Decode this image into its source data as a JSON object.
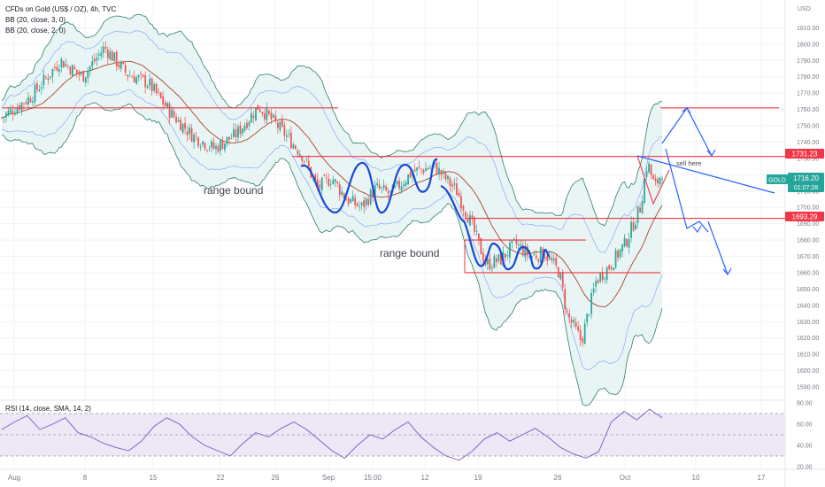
{
  "header": {
    "title": "CFDs on Gold (US$ / OZ), 4h, TVC",
    "indicators": [
      "BB (20, close, 3, 0)",
      "BB (20, close, 2, 0)"
    ]
  },
  "currency": "USD",
  "rsi_legend": "RSI (14, close, SMA, 14, 2)",
  "price_badges": {
    "symbol": "GOLD",
    "last_price": "1716.20",
    "countdown": "01:07:28",
    "upper_level": "1731.23",
    "lower_level": "1693.29"
  },
  "annotations": {
    "range_bound_1": "range bound",
    "range_bound_2": "range bound",
    "sell_here": "sell here"
  },
  "colors": {
    "candle_up": "#26a69a",
    "candle_down": "#ef5350",
    "bb_outer": "#2e7d6e",
    "bb_inner": "#2962ff",
    "basis": "#a8452a",
    "band_fill": "#e3f2f1",
    "levels": "#f23645",
    "drawing": "#1848d8",
    "forecast": "#2962ff",
    "rsi_line": "#7e57c2",
    "rsi_band": "#ede7f6"
  },
  "chart_data": {
    "type": "candlestick",
    "title": "CFDs on Gold (US$ / OZ), 4h, TVC",
    "ylabel": "USD",
    "ylim": [
      1590,
      1820
    ],
    "y_ticks": [
      1590,
      1600,
      1610,
      1620,
      1630,
      1640,
      1650,
      1660,
      1670,
      1680,
      1690,
      1700,
      1710,
      1720,
      1730,
      1740,
      1750,
      1760,
      1770,
      1780,
      1790,
      1800,
      1810
    ],
    "x_tick_labels": [
      "Aug",
      "8",
      "15",
      "22",
      "26",
      "Sep",
      "15:00",
      "12",
      "19",
      "26",
      "Oct",
      "10",
      "17"
    ],
    "close_path": [
      [
        0,
        1755
      ],
      [
        4,
        1768
      ],
      [
        8,
        1790
      ],
      [
        11,
        1780
      ],
      [
        14,
        1798
      ],
      [
        17,
        1782
      ],
      [
        20,
        1776
      ],
      [
        23,
        1758
      ],
      [
        26,
        1744
      ],
      [
        29,
        1736
      ],
      [
        32,
        1745
      ],
      [
        35,
        1762
      ],
      [
        38,
        1748
      ],
      [
        41,
        1732
      ],
      [
        43,
        1712
      ],
      [
        45,
        1718
      ],
      [
        47,
        1705
      ],
      [
        49,
        1700
      ],
      [
        51,
        1712
      ],
      [
        53,
        1708
      ],
      [
        56,
        1722
      ],
      [
        59,
        1725
      ],
      [
        62,
        1710
      ],
      [
        64,
        1690
      ],
      [
        66,
        1665
      ],
      [
        68,
        1668
      ],
      [
        70,
        1678
      ],
      [
        72,
        1670
      ],
      [
        74,
        1672
      ],
      [
        76,
        1660
      ],
      [
        77,
        1635
      ],
      [
        79,
        1618
      ],
      [
        81,
        1655
      ],
      [
        83,
        1665
      ],
      [
        85,
        1678
      ],
      [
        87,
        1700
      ],
      [
        88,
        1728
      ],
      [
        89,
        1712
      ],
      [
        90,
        1722
      ]
    ],
    "horizontal_levels": [
      {
        "value": 1761,
        "label": ""
      },
      {
        "value": 1731.23,
        "label": "1731.23"
      },
      {
        "value": 1693.29,
        "label": "1693.29"
      },
      {
        "value": 1680,
        "label": ""
      },
      {
        "value": 1660,
        "label": ""
      }
    ],
    "rsi": {
      "name": "RSI (14, close, SMA, 14, 2)",
      "ylim": [
        20,
        80
      ],
      "y_ticks": [
        20,
        40,
        60,
        80
      ],
      "band": [
        30,
        70
      ],
      "values": [
        55,
        62,
        68,
        55,
        60,
        66,
        52,
        48,
        42,
        38,
        35,
        44,
        58,
        66,
        60,
        48,
        40,
        35,
        30,
        42,
        52,
        48,
        56,
        62,
        55,
        45,
        35,
        28,
        40,
        50,
        46,
        55,
        62,
        48,
        38,
        30,
        26,
        34,
        46,
        52,
        44,
        50,
        56,
        48,
        38,
        32,
        28,
        34,
        62,
        72,
        64,
        74,
        66
      ]
    }
  }
}
